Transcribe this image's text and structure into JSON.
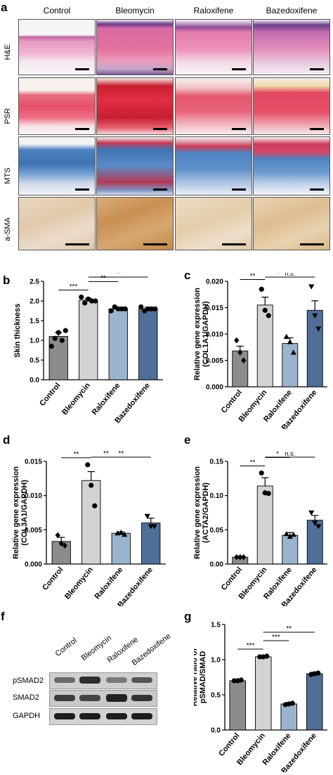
{
  "panel_letters": {
    "a": "a",
    "b": "b",
    "c": "c",
    "d": "d",
    "e": "e",
    "f": "f",
    "g": "g"
  },
  "histology": {
    "columns": [
      "Control",
      "Bleomycin",
      "Raloxifene",
      "Bazedoxifene"
    ],
    "rows": [
      "H&E",
      "PSR",
      "MTS",
      "a-SMA"
    ],
    "row_colors": {
      "H&E": "#e9a3c9",
      "PSR": "#e8526a",
      "MTS": "#4a7fb8",
      "a-SMA": "#e3c39f"
    }
  },
  "blot": {
    "columns": [
      "Control",
      "Bleomycin",
      "Raloxifene",
      "Bazedoxifene"
    ],
    "bands": [
      "pSMAD2",
      "SMAD2",
      "GAPDH"
    ]
  },
  "colors": {
    "Control": "#8c8c8c",
    "Bleomycin": "#d3d3d3",
    "Raloxifene": "#9bb4ce",
    "Bazedoxifene": "#4f6f99"
  },
  "chart_data": [
    {
      "id": "b",
      "type": "bar",
      "categories": [
        "Control",
        "Bleomycin",
        "Raloxifene",
        "Bazedoxifene"
      ],
      "values": [
        1.1,
        2.02,
        1.8,
        1.8
      ],
      "errors": [
        0.1,
        0.04,
        0.03,
        0.04
      ],
      "points": [
        [
          0.85,
          1.05,
          1.2,
          1.0,
          1.25
        ],
        [
          2.1,
          1.95,
          2.05,
          2.0,
          2.0
        ],
        [
          1.75,
          1.85,
          1.8,
          1.8,
          1.8
        ],
        [
          1.85,
          1.75,
          1.8,
          1.8,
          1.8
        ]
      ],
      "marker": "circle",
      "ylabel": "Skin thickness",
      "ylim": [
        0,
        2.5
      ],
      "yticks": [
        "0.0",
        "0.5",
        "1.0",
        "1.5",
        "2.0",
        "2.5"
      ],
      "sig": [
        {
          "from": 0,
          "to": 1,
          "label": "***"
        },
        {
          "from": 1,
          "to": 2,
          "label": "**"
        },
        {
          "from": 1,
          "to": 3,
          "label": "**"
        }
      ]
    },
    {
      "id": "c",
      "type": "bar",
      "categories": [
        "Control",
        "Bleomycin",
        "Raloxifene",
        "Bazedoxifene"
      ],
      "values": [
        0.0068,
        0.0155,
        0.0082,
        0.0145
      ],
      "errors": [
        0.0009,
        0.0015,
        0.0011,
        0.0018
      ],
      "points": [
        [
          0.0088,
          0.0065,
          0.005
        ],
        [
          0.0185,
          0.0145,
          0.0135
        ],
        [
          0.0095,
          0.0085,
          0.0065
        ],
        [
          0.019,
          0.0135,
          0.011
        ]
      ],
      "marker": "mixed",
      "ylabel": "Relative gene expression (COL1A1/GAPDH)",
      "ylim": [
        0,
        0.02
      ],
      "yticks": [
        "0.000",
        "0.005",
        "0.010",
        "0.015",
        "0.020"
      ],
      "sig": [
        {
          "from": 0,
          "to": 1,
          "label": "**"
        },
        {
          "from": 1,
          "to": 2,
          "label": "*"
        },
        {
          "from": 1,
          "to": 3,
          "label": "n.s."
        }
      ]
    },
    {
      "id": "d",
      "type": "bar",
      "categories": [
        "Control",
        "Bleomycin",
        "Raloxifene",
        "Bazedoxifene"
      ],
      "values": [
        0.0033,
        0.0122,
        0.0045,
        0.006
      ],
      "errors": [
        0.0006,
        0.0013,
        0.0002,
        0.0007
      ],
      "points": [
        [
          0.0042,
          0.003,
          0.0027
        ],
        [
          0.0145,
          0.0115,
          0.0085
        ],
        [
          0.0045,
          0.0046,
          0.0043
        ],
        [
          0.007,
          0.0055,
          0.0055
        ]
      ],
      "marker": "mixed",
      "ylabel": "Relative gene expression (COL3A1/GAPDH)",
      "ylim": [
        0,
        0.015
      ],
      "yticks": [
        "0.000",
        "0.005",
        "0.010",
        "0.015"
      ],
      "sig": [
        {
          "from": 0,
          "to": 1,
          "label": "**"
        },
        {
          "from": 1,
          "to": 2,
          "label": "**"
        },
        {
          "from": 1,
          "to": 3,
          "label": "**"
        }
      ]
    },
    {
      "id": "e",
      "type": "bar",
      "categories": [
        "Control",
        "Bleomycin",
        "Raloxifene",
        "Bazedoxifene"
      ],
      "values": [
        0.01,
        0.114,
        0.042,
        0.064
      ],
      "errors": [
        0.001,
        0.012,
        0.004,
        0.007
      ],
      "points": [
        [
          0.01,
          0.01,
          0.01
        ],
        [
          0.133,
          0.104,
          0.103
        ],
        [
          0.044,
          0.04,
          0.043
        ],
        [
          0.075,
          0.06,
          0.055
        ]
      ],
      "marker": "mixed",
      "ylabel": "Relative gene expression (ACTA2/GAPDH)",
      "ylim": [
        0,
        0.15
      ],
      "yticks": [
        "0.00",
        "0.05",
        "0.10",
        "0.15"
      ],
      "sig": [
        {
          "from": 0,
          "to": 1,
          "label": "**"
        },
        {
          "from": 1,
          "to": 2,
          "label": "*"
        },
        {
          "from": 1,
          "to": 3,
          "label": "n.s."
        }
      ]
    },
    {
      "id": "g",
      "type": "bar",
      "categories": [
        "Control",
        "Bleomycin",
        "Raloxifene",
        "Bazedoxifene"
      ],
      "values": [
        0.7,
        1.04,
        0.37,
        0.8
      ],
      "errors": [
        0.01,
        0.005,
        0.02,
        0.02
      ],
      "points": [
        [
          0.7,
          0.7,
          0.71
        ],
        [
          1.04,
          1.04,
          1.05
        ],
        [
          0.36,
          0.37,
          0.38
        ],
        [
          0.79,
          0.8,
          0.81
        ]
      ],
      "marker": "circle",
      "ylabel": "Relative ratio of pSMAD/SMAD",
      "ylim": [
        0,
        1.5
      ],
      "yticks": [
        "0.0",
        "0.5",
        "1.0",
        "1.5"
      ],
      "sig": [
        {
          "from": 0,
          "to": 1,
          "label": "***"
        },
        {
          "from": 1,
          "to": 2,
          "label": "***"
        },
        {
          "from": 1,
          "to": 3,
          "label": "**"
        }
      ]
    }
  ]
}
